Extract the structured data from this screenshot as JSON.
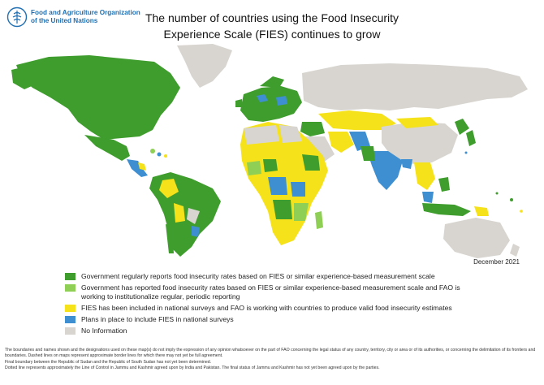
{
  "header": {
    "org_line1": "Food and Agriculture Organization",
    "org_line2": "of the United Nations",
    "title_line1": "The number of countries using the Food Insecurity",
    "title_line2": "Experience Scale (FIES) continues to grow"
  },
  "date": "December 2021",
  "colors": {
    "dark_green": "#3f9d2e",
    "light_green": "#8fcf55",
    "yellow": "#f5e21b",
    "blue": "#3d8fd1",
    "gray": "#d8d5d0",
    "logo_blue": "#1f6fb2"
  },
  "legend": [
    {
      "color_key": "dark_green",
      "label": "Government regularly reports food insecurity rates based on FIES or similar experience-based measurement scale"
    },
    {
      "color_key": "light_green",
      "label": "Government has reported food insecurity rates based on FIES or similar experience-based measurement scale and FAO is working to institutionalize regular, periodic reporting"
    },
    {
      "color_key": "yellow",
      "label": "FIES has been included in national surveys and FAO is working with countries to produce valid food insecurity estimates"
    },
    {
      "color_key": "blue",
      "label": "Plans in place to include FIES in national surveys"
    },
    {
      "color_key": "gray",
      "label": "No Information"
    }
  ],
  "notes": [
    "The boundaries and names shown and the designations used on these map(s) do not imply the expression of any opinion whatsoever on the part of FAO concerning the legal status of any country, territory, city or area or of its authorities, or concerning the delimitation of its frontiers and boundaries. Dashed lines on maps represent approximate border lines for which there may not yet be full agreement.",
    "Final boundary between the Republic of Sudan and the Republic of South Sudan has not yet been determined.",
    "Dotted line represents approximately the Line of Control in Jammu and Kashmir agreed upon by India and Pakistan. The final status of Jammu and Kashmir has not yet been agreed upon by the parties."
  ]
}
